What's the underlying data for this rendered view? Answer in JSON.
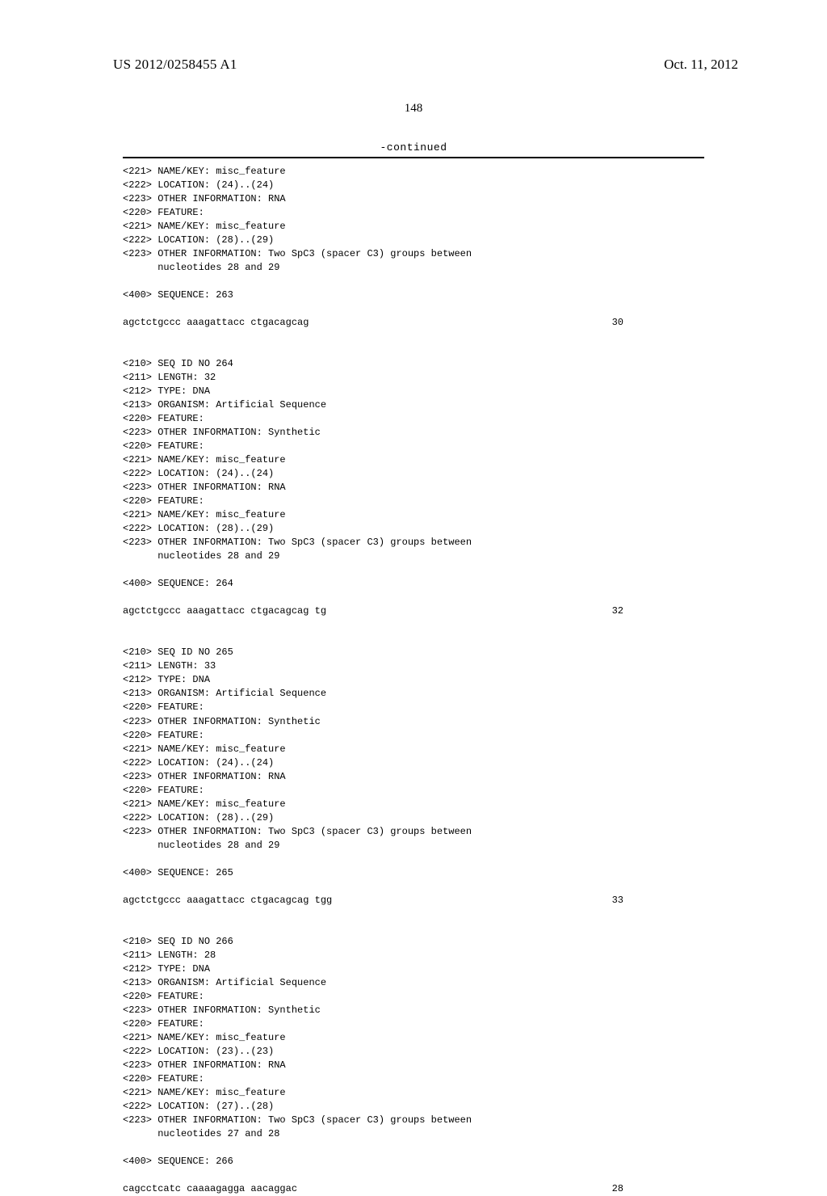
{
  "header": {
    "doc_number": "US 2012/0258455 A1",
    "date": "Oct. 11, 2012"
  },
  "page_number": "148",
  "continued_label": "-continued",
  "blocks": [
    {
      "lines": [
        "<221> NAME/KEY: misc_feature",
        "<222> LOCATION: (24)..(24)",
        "<223> OTHER INFORMATION: RNA",
        "<220> FEATURE:",
        "<221> NAME/KEY: misc_feature",
        "<222> LOCATION: (28)..(29)",
        "<223> OTHER INFORMATION: Two SpC3 (spacer C3) groups between",
        "      nucleotides 28 and 29"
      ],
      "seq_header": "<400> SEQUENCE: 263",
      "sequence": "agctctgccc aaagattacc ctgacagcag",
      "seq_len": "30"
    },
    {
      "lines": [
        "<210> SEQ ID NO 264",
        "<211> LENGTH: 32",
        "<212> TYPE: DNA",
        "<213> ORGANISM: Artificial Sequence",
        "<220> FEATURE:",
        "<223> OTHER INFORMATION: Synthetic",
        "<220> FEATURE:",
        "<221> NAME/KEY: misc_feature",
        "<222> LOCATION: (24)..(24)",
        "<223> OTHER INFORMATION: RNA",
        "<220> FEATURE:",
        "<221> NAME/KEY: misc_feature",
        "<222> LOCATION: (28)..(29)",
        "<223> OTHER INFORMATION: Two SpC3 (spacer C3) groups between",
        "      nucleotides 28 and 29"
      ],
      "seq_header": "<400> SEQUENCE: 264",
      "sequence": "agctctgccc aaagattacc ctgacagcag tg",
      "seq_len": "32"
    },
    {
      "lines": [
        "<210> SEQ ID NO 265",
        "<211> LENGTH: 33",
        "<212> TYPE: DNA",
        "<213> ORGANISM: Artificial Sequence",
        "<220> FEATURE:",
        "<223> OTHER INFORMATION: Synthetic",
        "<220> FEATURE:",
        "<221> NAME/KEY: misc_feature",
        "<222> LOCATION: (24)..(24)",
        "<223> OTHER INFORMATION: RNA",
        "<220> FEATURE:",
        "<221> NAME/KEY: misc_feature",
        "<222> LOCATION: (28)..(29)",
        "<223> OTHER INFORMATION: Two SpC3 (spacer C3) groups between",
        "      nucleotides 28 and 29"
      ],
      "seq_header": "<400> SEQUENCE: 265",
      "sequence": "agctctgccc aaagattacc ctgacagcag tgg",
      "seq_len": "33"
    },
    {
      "lines": [
        "<210> SEQ ID NO 266",
        "<211> LENGTH: 28",
        "<212> TYPE: DNA",
        "<213> ORGANISM: Artificial Sequence",
        "<220> FEATURE:",
        "<223> OTHER INFORMATION: Synthetic",
        "<220> FEATURE:",
        "<221> NAME/KEY: misc_feature",
        "<222> LOCATION: (23)..(23)",
        "<223> OTHER INFORMATION: RNA",
        "<220> FEATURE:",
        "<221> NAME/KEY: misc_feature",
        "<222> LOCATION: (27)..(28)",
        "<223> OTHER INFORMATION: Two SpC3 (spacer C3) groups between",
        "      nucleotides 27 and 28"
      ],
      "seq_header": "<400> SEQUENCE: 266",
      "sequence": "cagcctcatc caaaagagga aacaggac",
      "seq_len": "28"
    }
  ]
}
